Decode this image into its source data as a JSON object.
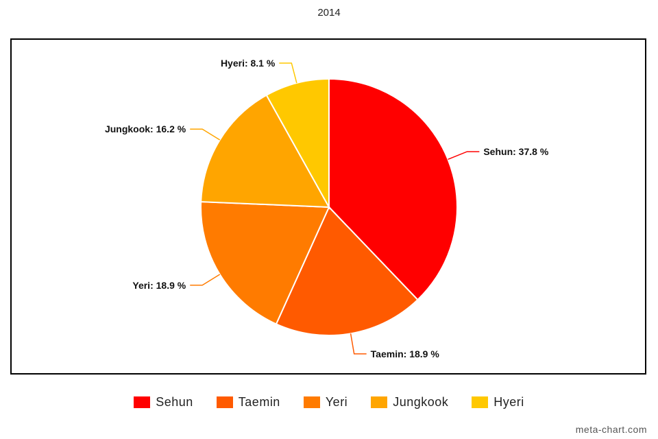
{
  "chart_data": {
    "type": "pie",
    "title": "2014",
    "slices": [
      {
        "label": "Sehun",
        "value": 37.8,
        "display": "Sehun: 37.8 %",
        "color": "#ff0000"
      },
      {
        "label": "Taemin",
        "value": 18.9,
        "display": "Taemin: 18.9 %",
        "color": "#ff5a00"
      },
      {
        "label": "Yeri",
        "value": 18.9,
        "display": "Yeri: 18.9 %",
        "color": "#ff7b00"
      },
      {
        "label": "Jungkook",
        "value": 16.2,
        "display": "Jungkook: 16.2 %",
        "color": "#ffa500"
      },
      {
        "label": "Hyeri",
        "value": 8.1,
        "display": "Hyeri: 8.1 %",
        "color": "#ffc800"
      }
    ],
    "legend_position": "bottom"
  },
  "watermark": "meta-chart.com"
}
